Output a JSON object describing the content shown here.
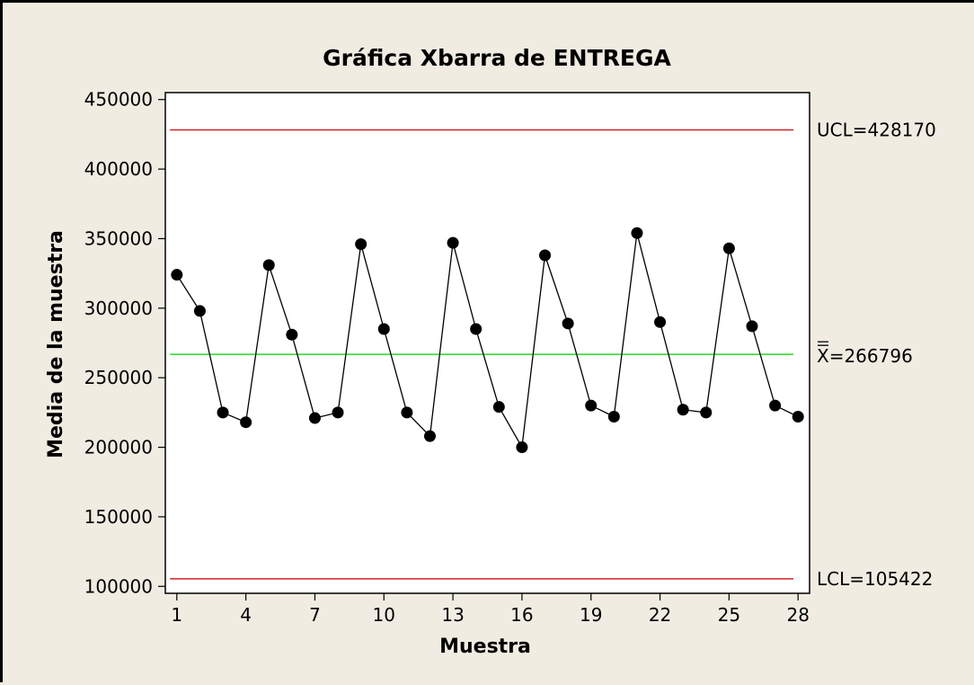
{
  "chart_data": {
    "type": "line",
    "title": "Gráfica Xbarra de ENTREGA",
    "xlabel": "Muestra",
    "ylabel": "Media de la muestra",
    "x": [
      1,
      2,
      3,
      4,
      5,
      6,
      7,
      8,
      9,
      10,
      11,
      12,
      13,
      14,
      15,
      16,
      17,
      18,
      19,
      20,
      21,
      22,
      23,
      24,
      25,
      26,
      27,
      28
    ],
    "values": [
      324000,
      298000,
      225000,
      218000,
      331000,
      281000,
      221000,
      225000,
      346000,
      285000,
      225000,
      208000,
      347000,
      285000,
      229000,
      200000,
      338000,
      289000,
      230000,
      222000,
      354000,
      290000,
      227000,
      225000,
      343000,
      287000,
      230000,
      222000
    ],
    "xticks": [
      1,
      4,
      7,
      10,
      13,
      16,
      19,
      22,
      25,
      28
    ],
    "yticks": [
      100000,
      150000,
      200000,
      250000,
      300000,
      350000,
      400000,
      450000
    ],
    "xlim": [
      0.5,
      28.5
    ],
    "ylim": [
      95000,
      455000
    ],
    "grid": false,
    "limits": {
      "ucl": {
        "label": "UCL=428170",
        "value": 428170,
        "color": "#d62020"
      },
      "center": {
        "label": "X=266796",
        "value": 266796,
        "color": "#33e033"
      },
      "lcl": {
        "label": "LCL=105422",
        "value": 105422,
        "color": "#d62020"
      }
    },
    "series_color": "#000000"
  }
}
